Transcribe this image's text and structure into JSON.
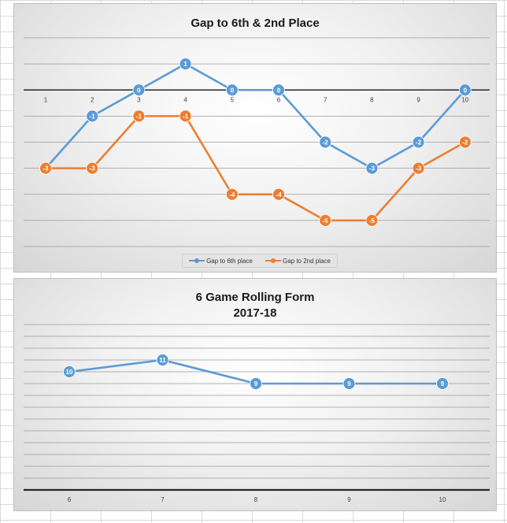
{
  "chart_data": [
    {
      "type": "line",
      "title": "Gap to 6th & 2nd Place",
      "xlabel": "",
      "ylabel": "",
      "categories": [
        "1",
        "2",
        "3",
        "4",
        "5",
        "6",
        "7",
        "8",
        "9",
        "10"
      ],
      "ylim": [
        -6,
        2
      ],
      "grid": true,
      "legend_position": "bottom",
      "series": [
        {
          "name": "Gap to 6th place",
          "color": "#5b9bd5",
          "values": [
            -3,
            -1,
            0,
            1,
            0,
            0,
            -2,
            -3,
            -2,
            0
          ]
        },
        {
          "name": "Gap to 2nd place",
          "color": "#ed7d31",
          "values": [
            -3,
            -3,
            -1,
            -1,
            -4,
            -4,
            -5,
            -5,
            -3,
            -2
          ]
        }
      ]
    },
    {
      "type": "line",
      "title": "6 Game Rolling Form",
      "subtitle": "2017-18",
      "xlabel": "",
      "ylabel": "",
      "categories": [
        "6",
        "7",
        "8",
        "9",
        "10"
      ],
      "ylim": [
        0,
        14
      ],
      "grid": true,
      "series": [
        {
          "color": "#5b9bd5",
          "values": [
            10,
            11,
            9,
            9,
            9
          ]
        }
      ]
    }
  ]
}
